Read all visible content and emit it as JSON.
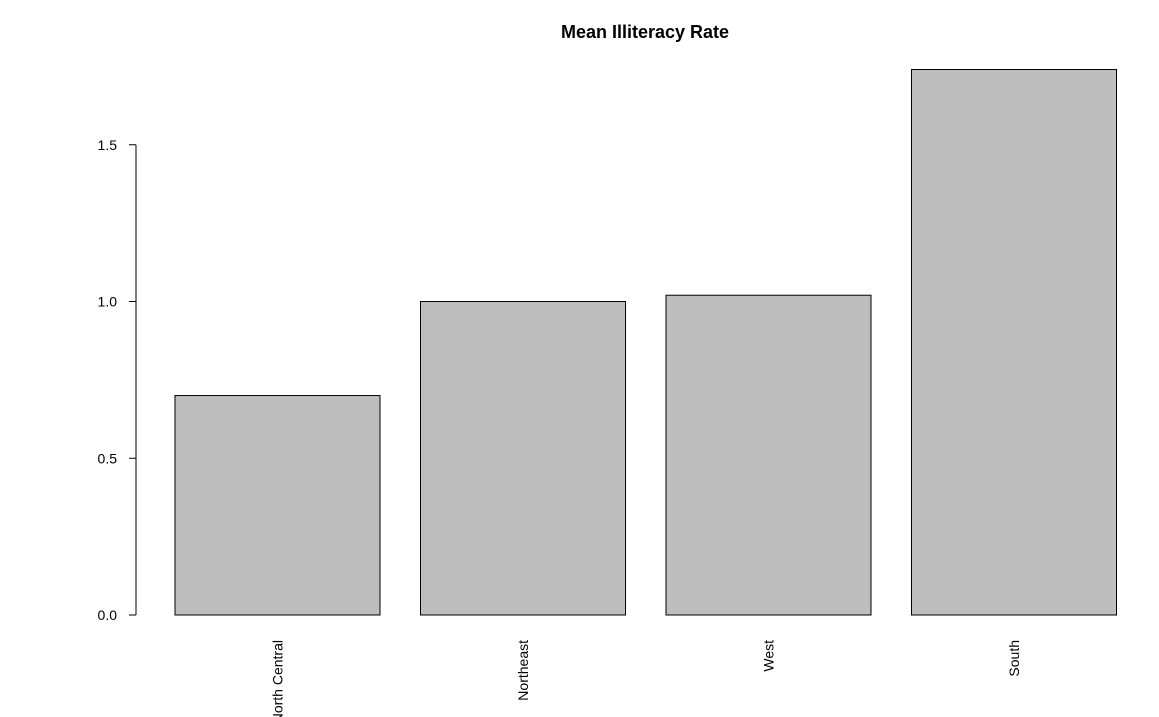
{
  "chart_data": {
    "type": "bar",
    "title": "Mean Illiteracy Rate",
    "xlabel": "",
    "ylabel": "",
    "categories": [
      "North Central",
      "Northeast",
      "West",
      "South"
    ],
    "values": [
      0.7,
      1.0,
      1.02,
      1.74
    ],
    "ylim": [
      0,
      1.74
    ],
    "yticks": [
      0.0,
      0.5,
      1.0,
      1.5
    ],
    "ytick_labels": [
      "0.0",
      "0.5",
      "1.0",
      "1.5"
    ],
    "grid": false,
    "legend": "none",
    "colors": {
      "bar_fill": "#bebebe",
      "bar_stroke": "#000000",
      "axis": "#000000",
      "background": "#ffffff"
    }
  }
}
